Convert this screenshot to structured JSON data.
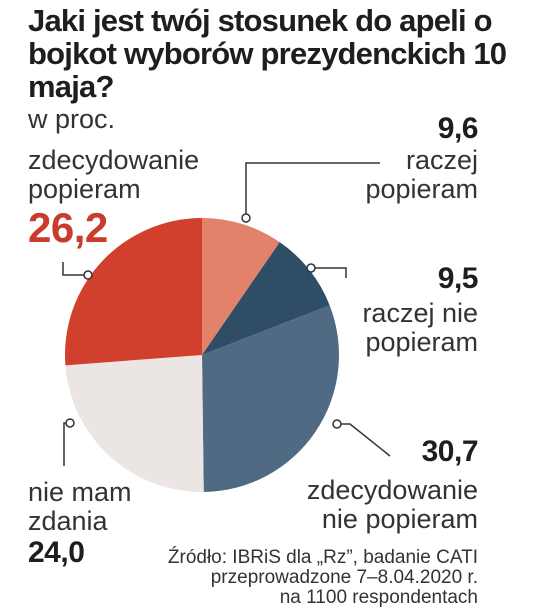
{
  "title": "Jaki jest twój stosunek do apeli o bojkot wyborów prezydenckich 10 maja?",
  "subtitle": "w proc.",
  "colors": {
    "s1": "#e3826a",
    "s2": "#2f4e66",
    "s3": "#4f6a82",
    "s4": "#ebe5e4",
    "s5": "#d0402d",
    "lines": "#333333",
    "highlight": "#c93b2a"
  },
  "chart_data": {
    "type": "pie",
    "title": "Jaki jest twój stosunek do apeli o bojkot wyborów prezydenckich 10 maja?",
    "unit": "w proc.",
    "slices": [
      {
        "label": "raczej popieram",
        "value": 9.6,
        "value_text": "9,6"
      },
      {
        "label": "raczej nie popieram",
        "value": 9.5,
        "value_text": "9,5"
      },
      {
        "label": "zdecydowanie nie popieram",
        "value": 30.7,
        "value_text": "30,7"
      },
      {
        "label": "nie mam zdania",
        "value": 24.0,
        "value_text": "24,0"
      },
      {
        "label": "zdecydowanie popieram",
        "value": 26.2,
        "value_text": "26,2"
      }
    ]
  },
  "labels": {
    "s1": [
      "raczej",
      "popieram"
    ],
    "s2": [
      "raczej nie",
      "popieram"
    ],
    "s3": [
      "zdecydowanie",
      "nie popieram"
    ],
    "s4": [
      "nie mam",
      "zdania"
    ],
    "s5": [
      "zdecydowanie",
      "popieram"
    ]
  },
  "source": [
    "Źródło: IBRiS dla „Rz”, badanie CATI",
    "przeprowadzone 7–8.04.2020 r.",
    "na 1100 respondentach"
  ]
}
